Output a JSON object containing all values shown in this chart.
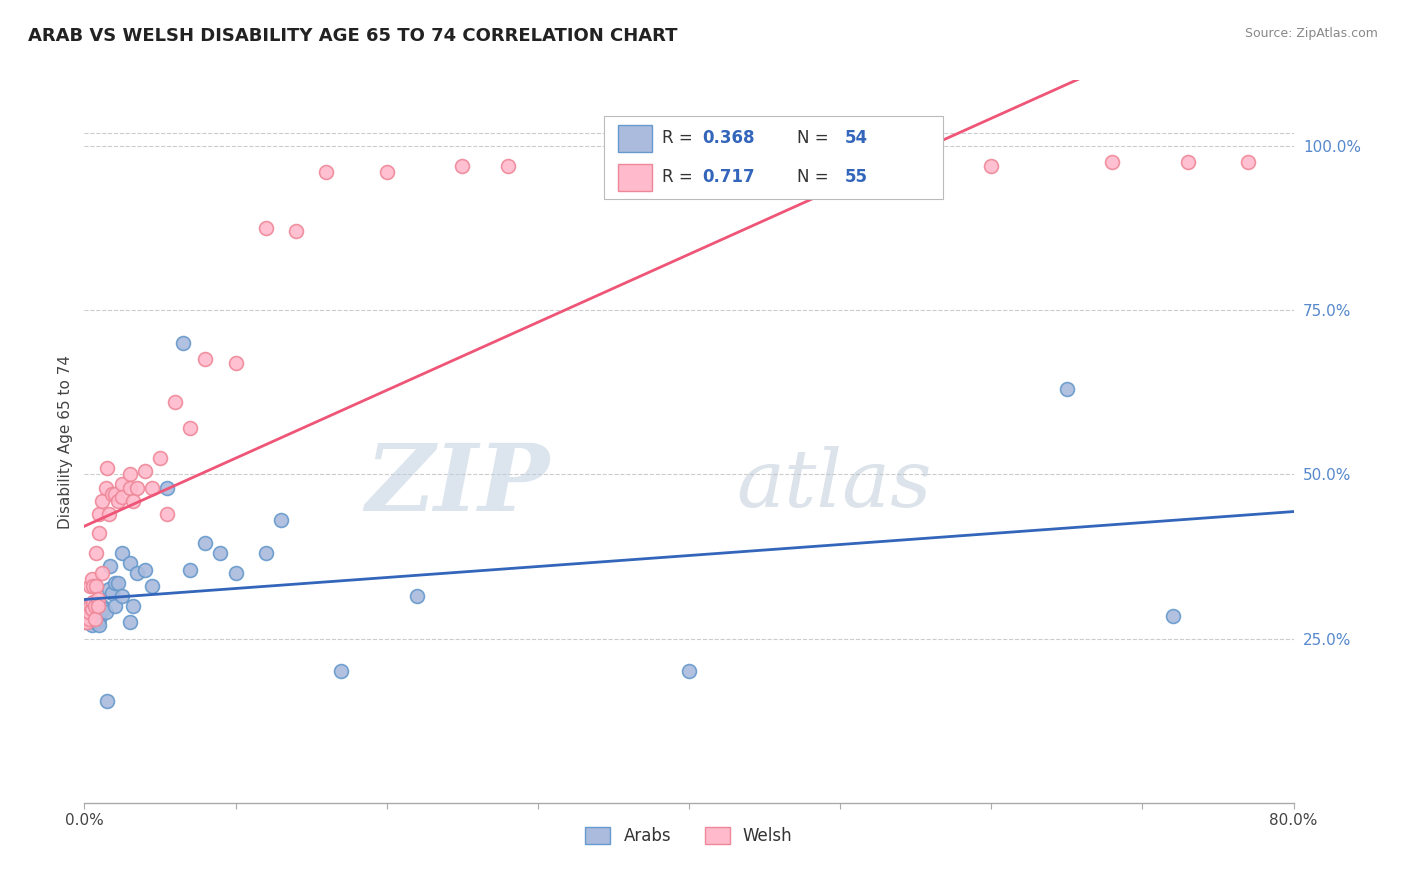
{
  "title": "ARAB VS WELSH DISABILITY AGE 65 TO 74 CORRELATION CHART",
  "source": "Source: ZipAtlas.com",
  "ylabel": "Disability Age 65 to 74",
  "xlim": [
    0.0,
    0.8
  ],
  "ylim": [
    0.0,
    1.1
  ],
  "xticks": [
    0.0,
    0.1,
    0.2,
    0.3,
    0.4,
    0.5,
    0.6,
    0.7,
    0.8
  ],
  "xticklabels": [
    "0.0%",
    "",
    "",
    "",
    "",
    "",
    "",
    "",
    "80.0%"
  ],
  "ytick_positions": [
    0.25,
    0.5,
    0.75,
    1.0
  ],
  "ytick_labels": [
    "25.0%",
    "50.0%",
    "75.0%",
    "100.0%"
  ],
  "arab_color": "#AABBDD",
  "arab_edge": "#6699CC",
  "welsh_color": "#FFBBCC",
  "welsh_edge": "#EE8899",
  "arab_line_color": "#3366BB",
  "welsh_line_color": "#EE5577",
  "arab_R": 0.368,
  "arab_N": 54,
  "welsh_R": 0.717,
  "welsh_N": 55,
  "watermark_zip": "ZIP",
  "watermark_atlas": "atlas",
  "background_color": "#FFFFFF",
  "grid_color": "#CCCCCC",
  "legend_text_color": "#3366BB",
  "arab_scatter_x": [
    0.001,
    0.001,
    0.001,
    0.002,
    0.002,
    0.003,
    0.003,
    0.004,
    0.004,
    0.005,
    0.005,
    0.006,
    0.006,
    0.007,
    0.007,
    0.008,
    0.008,
    0.009,
    0.009,
    0.01,
    0.01,
    0.01,
    0.012,
    0.012,
    0.013,
    0.014,
    0.015,
    0.016,
    0.017,
    0.018,
    0.02,
    0.02,
    0.022,
    0.025,
    0.025,
    0.03,
    0.03,
    0.032,
    0.035,
    0.04,
    0.045,
    0.055,
    0.065,
    0.07,
    0.08,
    0.09,
    0.1,
    0.12,
    0.13,
    0.17,
    0.22,
    0.4,
    0.65,
    0.72
  ],
  "arab_scatter_y": [
    0.285,
    0.295,
    0.275,
    0.3,
    0.285,
    0.28,
    0.295,
    0.275,
    0.285,
    0.27,
    0.28,
    0.28,
    0.28,
    0.285,
    0.275,
    0.28,
    0.285,
    0.29,
    0.275,
    0.285,
    0.28,
    0.27,
    0.3,
    0.295,
    0.295,
    0.29,
    0.155,
    0.325,
    0.36,
    0.32,
    0.335,
    0.3,
    0.335,
    0.38,
    0.315,
    0.365,
    0.275,
    0.3,
    0.35,
    0.355,
    0.33,
    0.48,
    0.7,
    0.355,
    0.395,
    0.38,
    0.35,
    0.38,
    0.43,
    0.2,
    0.315,
    0.2,
    0.63,
    0.285
  ],
  "welsh_scatter_x": [
    0.001,
    0.001,
    0.001,
    0.002,
    0.002,
    0.003,
    0.003,
    0.004,
    0.004,
    0.005,
    0.005,
    0.006,
    0.006,
    0.007,
    0.007,
    0.008,
    0.008,
    0.009,
    0.009,
    0.01,
    0.01,
    0.012,
    0.012,
    0.014,
    0.015,
    0.016,
    0.018,
    0.02,
    0.022,
    0.025,
    0.025,
    0.03,
    0.03,
    0.032,
    0.035,
    0.04,
    0.045,
    0.05,
    0.055,
    0.06,
    0.07,
    0.08,
    0.1,
    0.12,
    0.14,
    0.16,
    0.2,
    0.25,
    0.28,
    0.35,
    0.5,
    0.6,
    0.68,
    0.73,
    0.77
  ],
  "welsh_scatter_y": [
    0.28,
    0.285,
    0.275,
    0.285,
    0.275,
    0.28,
    0.29,
    0.33,
    0.3,
    0.34,
    0.295,
    0.33,
    0.305,
    0.3,
    0.28,
    0.33,
    0.38,
    0.31,
    0.3,
    0.41,
    0.44,
    0.46,
    0.35,
    0.48,
    0.51,
    0.44,
    0.47,
    0.47,
    0.46,
    0.485,
    0.465,
    0.5,
    0.48,
    0.46,
    0.48,
    0.505,
    0.48,
    0.525,
    0.44,
    0.61,
    0.57,
    0.675,
    0.67,
    0.875,
    0.87,
    0.96,
    0.96,
    0.97,
    0.97,
    0.975,
    0.975,
    0.97,
    0.975,
    0.975,
    0.975
  ]
}
